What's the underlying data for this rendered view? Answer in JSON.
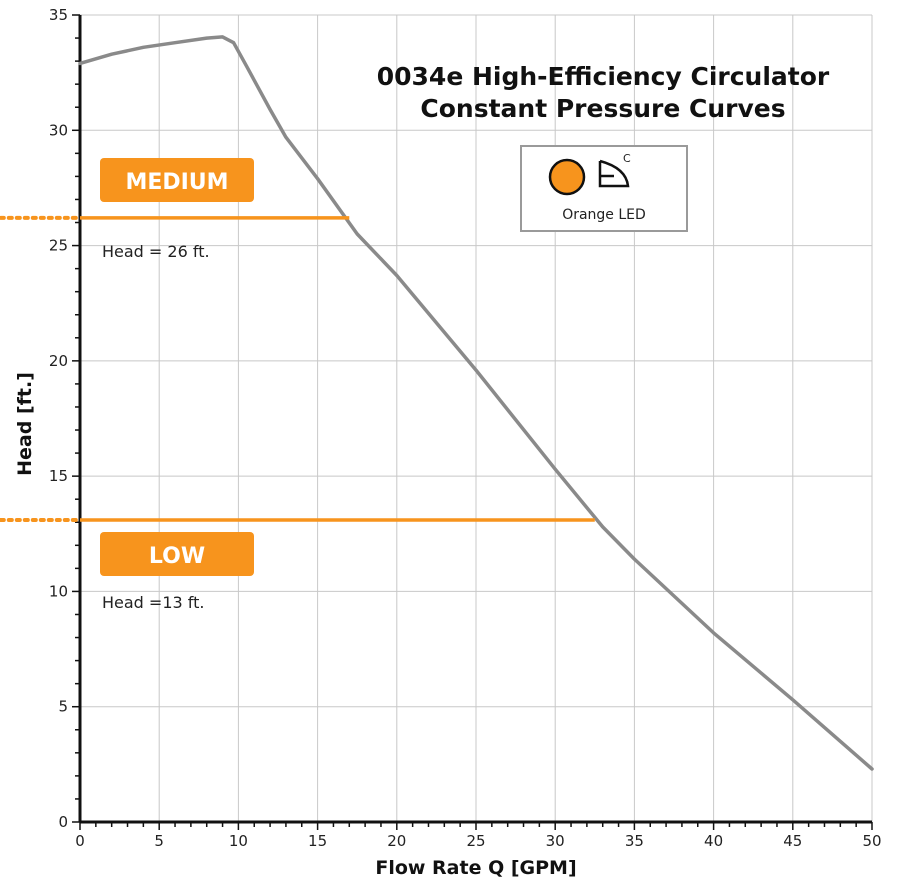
{
  "chart_data": {
    "type": "line",
    "title": [
      "0034e High-Efficiency Circulator",
      "Constant Pressure Curves"
    ],
    "xlabel": "Flow Rate Q [GPM]",
    "ylabel": "Head [ft.]",
    "xlim": [
      0,
      50
    ],
    "ylim": [
      0,
      35
    ],
    "x_ticks": [
      0,
      5,
      10,
      15,
      20,
      25,
      30,
      35,
      40,
      45,
      50
    ],
    "y_ticks": [
      0,
      5,
      10,
      15,
      20,
      25,
      30,
      35
    ],
    "grid": true,
    "series": [
      {
        "color": "#8a8a8a",
        "x": [
          0,
          2,
          4,
          6,
          8,
          9,
          9.7,
          10.5,
          12,
          13,
          15,
          17.5,
          20,
          25,
          30,
          33,
          35,
          40,
          45,
          50
        ],
        "y": [
          32.9,
          33.3,
          33.6,
          33.8,
          34.0,
          34.05,
          33.8,
          32.8,
          30.9,
          29.7,
          27.9,
          25.5,
          23.7,
          19.6,
          15.3,
          12.8,
          11.4,
          8.2,
          5.3,
          2.3
        ]
      },
      {
        "color": "#f7941d",
        "x": [
          -5,
          17
        ],
        "y": [
          26.2,
          26.2
        ]
      },
      {
        "color": "#f7941d",
        "x": [
          -5,
          32.5
        ],
        "y": [
          13.1,
          13.1
        ]
      }
    ],
    "annotations": [
      {
        "badge": "MEDIUM",
        "text": "Head = 26 ft."
      },
      {
        "badge": "LOW",
        "text": "Head =13 ft."
      }
    ],
    "legend": {
      "label": "Orange LED",
      "superscript": "C",
      "color": "#f7941d",
      "placement": "top-right"
    }
  }
}
